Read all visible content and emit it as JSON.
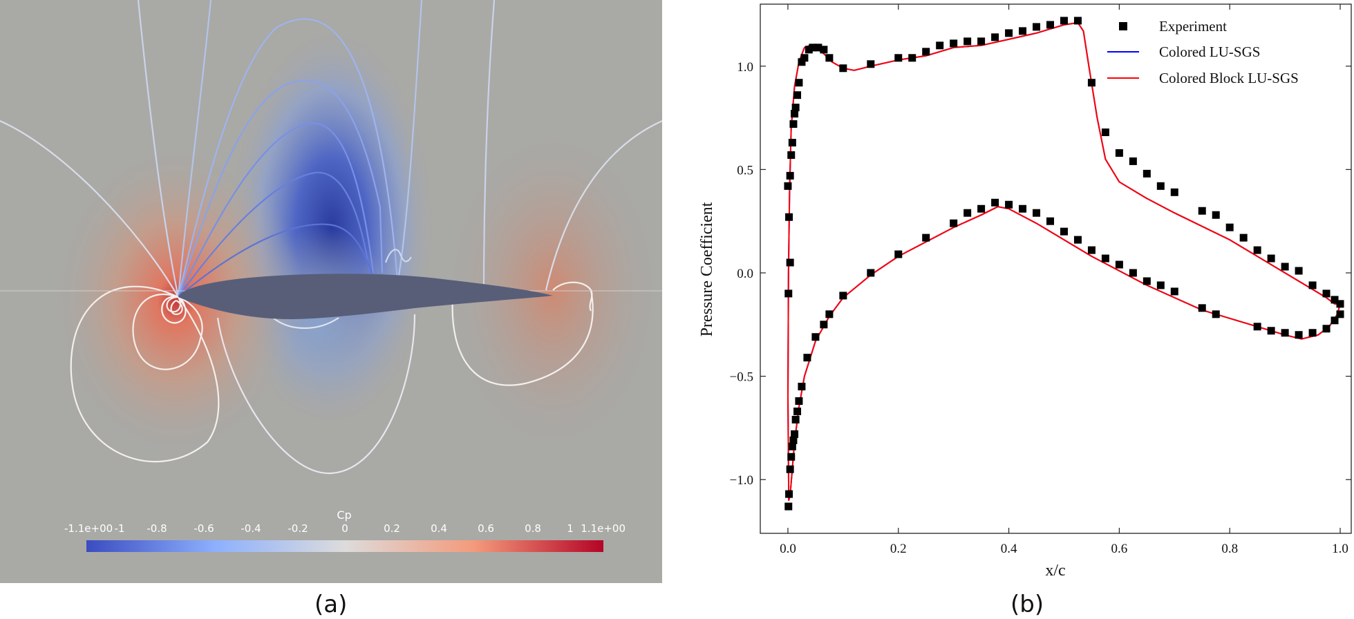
{
  "captions": {
    "a": "(a)",
    "b": "(b)"
  },
  "contour_panel": {
    "colorbar": {
      "title": "Cp",
      "tick_labels": [
        "-1.1e+00",
        "-1",
        "-0.8",
        "-0.6",
        "-0.4",
        "-0.2",
        "0",
        "0.2",
        "0.4",
        "0.6",
        "0.8",
        "1",
        "1.1e+00"
      ],
      "tick_values": [
        -1.1,
        -1.0,
        -0.8,
        -0.6,
        -0.4,
        -0.2,
        0,
        0.2,
        0.4,
        0.6,
        0.8,
        1.0,
        1.1
      ],
      "range": [
        -1.1,
        1.1
      ],
      "colors": {
        "low": "#3b4cc0",
        "mid": "#dddcdc",
        "high": "#b40426"
      }
    },
    "colors": {
      "background": "#a9a9a6",
      "airfoil": "#585e78",
      "contour_line": "#ffffff"
    }
  },
  "chart_data": {
    "type": "line",
    "xlabel": "x/c",
    "ylabel": "Pressure Coefficient",
    "xlim": [
      -0.05,
      1.02
    ],
    "ylim": [
      -1.26,
      1.3
    ],
    "x_ticks": [
      0.0,
      0.2,
      0.4,
      0.6,
      0.8,
      1.0
    ],
    "x_tick_labels": [
      "0.0",
      "0.2",
      "0.4",
      "0.6",
      "0.8",
      "1.0"
    ],
    "y_ticks": [
      -1.0,
      -0.5,
      0.0,
      0.5,
      1.0
    ],
    "y_tick_labels": [
      "−1.0",
      "−0.5",
      "0.0",
      "0.5",
      "1.0"
    ],
    "y_inverted": true,
    "legend_position": "top-right",
    "series": [
      {
        "name": "Experiment",
        "kind": "scatter",
        "marker": "square",
        "color": "#000000",
        "points": [
          [
            0.0,
            0.42
          ],
          [
            0.002,
            0.27
          ],
          [
            0.004,
            0.05
          ],
          [
            0.001,
            -0.1
          ],
          [
            0.004,
            0.47
          ],
          [
            0.006,
            0.57
          ],
          [
            0.008,
            0.63
          ],
          [
            0.01,
            0.72
          ],
          [
            0.012,
            0.77
          ],
          [
            0.014,
            0.8
          ],
          [
            0.017,
            0.86
          ],
          [
            0.02,
            0.92
          ],
          [
            0.025,
            1.02
          ],
          [
            0.03,
            1.04
          ],
          [
            0.038,
            1.08
          ],
          [
            0.045,
            1.09
          ],
          [
            0.055,
            1.09
          ],
          [
            0.065,
            1.08
          ],
          [
            0.075,
            1.04
          ],
          [
            0.1,
            0.99
          ],
          [
            0.15,
            1.01
          ],
          [
            0.2,
            1.04
          ],
          [
            0.225,
            1.04
          ],
          [
            0.25,
            1.07
          ],
          [
            0.275,
            1.1
          ],
          [
            0.3,
            1.11
          ],
          [
            0.325,
            1.12
          ],
          [
            0.35,
            1.12
          ],
          [
            0.375,
            1.14
          ],
          [
            0.4,
            1.16
          ],
          [
            0.425,
            1.17
          ],
          [
            0.45,
            1.19
          ],
          [
            0.475,
            1.2
          ],
          [
            0.5,
            1.22
          ],
          [
            0.525,
            1.22
          ],
          [
            0.55,
            0.92
          ],
          [
            0.575,
            0.68
          ],
          [
            0.6,
            0.58
          ],
          [
            0.625,
            0.54
          ],
          [
            0.65,
            0.48
          ],
          [
            0.675,
            0.42
          ],
          [
            0.7,
            0.39
          ],
          [
            0.75,
            0.3
          ],
          [
            0.775,
            0.28
          ],
          [
            0.8,
            0.22
          ],
          [
            0.825,
            0.17
          ],
          [
            0.85,
            0.11
          ],
          [
            0.875,
            0.07
          ],
          [
            0.9,
            0.03
          ],
          [
            0.925,
            0.01
          ],
          [
            0.95,
            -0.06
          ],
          [
            0.975,
            -0.1
          ],
          [
            0.99,
            -0.13
          ],
          [
            1.0,
            -0.15
          ],
          [
            0.001,
            -1.13
          ],
          [
            0.002,
            -1.07
          ],
          [
            0.004,
            -0.95
          ],
          [
            0.006,
            -0.89
          ],
          [
            0.008,
            -0.84
          ],
          [
            0.01,
            -0.81
          ],
          [
            0.012,
            -0.78
          ],
          [
            0.014,
            -0.71
          ],
          [
            0.017,
            -0.67
          ],
          [
            0.02,
            -0.62
          ],
          [
            0.025,
            -0.55
          ],
          [
            0.035,
            -0.41
          ],
          [
            0.05,
            -0.31
          ],
          [
            0.065,
            -0.25
          ],
          [
            0.075,
            -0.2
          ],
          [
            0.1,
            -0.11
          ],
          [
            0.15,
            0.0
          ],
          [
            0.2,
            0.09
          ],
          [
            0.25,
            0.17
          ],
          [
            0.3,
            0.24
          ],
          [
            0.325,
            0.29
          ],
          [
            0.35,
            0.31
          ],
          [
            0.375,
            0.34
          ],
          [
            0.4,
            0.33
          ],
          [
            0.425,
            0.31
          ],
          [
            0.45,
            0.29
          ],
          [
            0.475,
            0.25
          ],
          [
            0.5,
            0.2
          ],
          [
            0.525,
            0.16
          ],
          [
            0.55,
            0.11
          ],
          [
            0.575,
            0.07
          ],
          [
            0.6,
            0.04
          ],
          [
            0.625,
            0.0
          ],
          [
            0.65,
            -0.04
          ],
          [
            0.675,
            -0.06
          ],
          [
            0.7,
            -0.09
          ],
          [
            0.75,
            -0.17
          ],
          [
            0.775,
            -0.2
          ],
          [
            0.85,
            -0.26
          ],
          [
            0.875,
            -0.28
          ],
          [
            0.9,
            -0.29
          ],
          [
            0.925,
            -0.3
          ],
          [
            0.95,
            -0.29
          ],
          [
            0.975,
            -0.27
          ],
          [
            0.99,
            -0.23
          ],
          [
            1.0,
            -0.2
          ]
        ]
      },
      {
        "name": "Colored LU-SGS",
        "kind": "line",
        "color": "#0000ff",
        "points": [
          [
            1.0,
            -0.15
          ],
          [
            0.99,
            -0.15
          ],
          [
            0.975,
            -0.12
          ],
          [
            0.95,
            -0.08
          ],
          [
            0.9,
            0.0
          ],
          [
            0.8,
            0.16
          ],
          [
            0.7,
            0.29
          ],
          [
            0.65,
            0.36
          ],
          [
            0.6,
            0.44
          ],
          [
            0.575,
            0.55
          ],
          [
            0.56,
            0.75
          ],
          [
            0.545,
            1.0
          ],
          [
            0.535,
            1.17
          ],
          [
            0.525,
            1.21
          ],
          [
            0.5,
            1.2
          ],
          [
            0.45,
            1.16
          ],
          [
            0.4,
            1.13
          ],
          [
            0.35,
            1.1
          ],
          [
            0.3,
            1.09
          ],
          [
            0.25,
            1.05
          ],
          [
            0.2,
            1.03
          ],
          [
            0.15,
            1.0
          ],
          [
            0.12,
            0.98
          ],
          [
            0.1,
            0.99
          ],
          [
            0.08,
            1.02
          ],
          [
            0.065,
            1.06
          ],
          [
            0.05,
            1.09
          ],
          [
            0.04,
            1.1
          ],
          [
            0.03,
            1.09
          ],
          [
            0.02,
            1.02
          ],
          [
            0.012,
            0.9
          ],
          [
            0.006,
            0.7
          ],
          [
            0.003,
            0.4
          ],
          [
            0.001,
            0.0
          ],
          [
            0.0,
            -0.6
          ],
          [
            0.0015,
            -1.1
          ],
          [
            0.004,
            -1.08
          ],
          [
            0.008,
            -0.95
          ],
          [
            0.012,
            -0.82
          ],
          [
            0.02,
            -0.65
          ],
          [
            0.03,
            -0.5
          ],
          [
            0.05,
            -0.33
          ],
          [
            0.075,
            -0.21
          ],
          [
            0.1,
            -0.12
          ],
          [
            0.15,
            -0.01
          ],
          [
            0.2,
            0.08
          ],
          [
            0.25,
            0.15
          ],
          [
            0.3,
            0.22
          ],
          [
            0.35,
            0.28
          ],
          [
            0.38,
            0.32
          ],
          [
            0.4,
            0.31
          ],
          [
            0.45,
            0.24
          ],
          [
            0.5,
            0.16
          ],
          [
            0.55,
            0.08
          ],
          [
            0.6,
            0.01
          ],
          [
            0.65,
            -0.06
          ],
          [
            0.7,
            -0.12
          ],
          [
            0.75,
            -0.18
          ],
          [
            0.8,
            -0.22
          ],
          [
            0.85,
            -0.26
          ],
          [
            0.9,
            -0.3
          ],
          [
            0.93,
            -0.32
          ],
          [
            0.96,
            -0.3
          ],
          [
            0.98,
            -0.26
          ],
          [
            0.995,
            -0.2
          ],
          [
            1.0,
            -0.15
          ]
        ]
      },
      {
        "name": "Colored Block LU-SGS",
        "kind": "line",
        "color": "#ff0000",
        "points": [
          [
            1.0,
            -0.15
          ],
          [
            0.99,
            -0.15
          ],
          [
            0.975,
            -0.12
          ],
          [
            0.95,
            -0.08
          ],
          [
            0.9,
            0.0
          ],
          [
            0.8,
            0.16
          ],
          [
            0.7,
            0.29
          ],
          [
            0.65,
            0.36
          ],
          [
            0.6,
            0.44
          ],
          [
            0.575,
            0.55
          ],
          [
            0.56,
            0.75
          ],
          [
            0.545,
            1.0
          ],
          [
            0.535,
            1.17
          ],
          [
            0.525,
            1.21
          ],
          [
            0.5,
            1.2
          ],
          [
            0.45,
            1.16
          ],
          [
            0.4,
            1.13
          ],
          [
            0.35,
            1.1
          ],
          [
            0.3,
            1.09
          ],
          [
            0.25,
            1.05
          ],
          [
            0.2,
            1.03
          ],
          [
            0.15,
            1.0
          ],
          [
            0.12,
            0.98
          ],
          [
            0.1,
            0.99
          ],
          [
            0.08,
            1.02
          ],
          [
            0.065,
            1.06
          ],
          [
            0.05,
            1.09
          ],
          [
            0.04,
            1.1
          ],
          [
            0.03,
            1.09
          ],
          [
            0.02,
            1.02
          ],
          [
            0.012,
            0.9
          ],
          [
            0.006,
            0.7
          ],
          [
            0.003,
            0.4
          ],
          [
            0.001,
            0.0
          ],
          [
            0.0,
            -0.6
          ],
          [
            0.0015,
            -1.1
          ],
          [
            0.004,
            -1.08
          ],
          [
            0.008,
            -0.95
          ],
          [
            0.012,
            -0.82
          ],
          [
            0.02,
            -0.65
          ],
          [
            0.03,
            -0.5
          ],
          [
            0.05,
            -0.33
          ],
          [
            0.075,
            -0.21
          ],
          [
            0.1,
            -0.12
          ],
          [
            0.15,
            -0.01
          ],
          [
            0.2,
            0.08
          ],
          [
            0.25,
            0.15
          ],
          [
            0.3,
            0.22
          ],
          [
            0.35,
            0.28
          ],
          [
            0.38,
            0.32
          ],
          [
            0.4,
            0.31
          ],
          [
            0.45,
            0.24
          ],
          [
            0.5,
            0.16
          ],
          [
            0.55,
            0.08
          ],
          [
            0.6,
            0.01
          ],
          [
            0.65,
            -0.06
          ],
          [
            0.7,
            -0.12
          ],
          [
            0.75,
            -0.18
          ],
          [
            0.8,
            -0.22
          ],
          [
            0.85,
            -0.26
          ],
          [
            0.9,
            -0.3
          ],
          [
            0.93,
            -0.32
          ],
          [
            0.96,
            -0.3
          ],
          [
            0.98,
            -0.26
          ],
          [
            0.995,
            -0.2
          ],
          [
            1.0,
            -0.15
          ]
        ]
      }
    ]
  }
}
